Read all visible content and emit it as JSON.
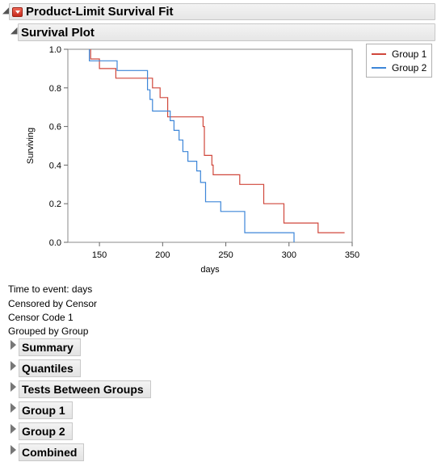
{
  "report": {
    "title": "Product-Limit Survival Fit",
    "plot_title": "Survival Plot"
  },
  "chart_data": {
    "type": "line",
    "step": true,
    "xlabel": "days",
    "ylabel": "Surviving",
    "xlim": [
      125,
      350
    ],
    "ylim": [
      0,
      1.0
    ],
    "xticks": [
      150,
      200,
      250,
      300,
      350
    ],
    "yticks": [
      0.0,
      0.2,
      0.4,
      0.6,
      0.8,
      1.0
    ],
    "grid": false,
    "legend_position": "top-right",
    "series": [
      {
        "name": "Group 1",
        "color": "#d0473b",
        "x": [
          143,
          143,
          150,
          150,
          163,
          163,
          192,
          192,
          198,
          198,
          204,
          204,
          232,
          232,
          233,
          233,
          239,
          239,
          240,
          240,
          261,
          261,
          280,
          280,
          296,
          296,
          323,
          323,
          344
        ],
        "y": [
          1.0,
          0.95,
          0.95,
          0.9,
          0.9,
          0.85,
          0.85,
          0.8,
          0.8,
          0.75,
          0.75,
          0.65,
          0.65,
          0.6,
          0.6,
          0.45,
          0.45,
          0.4,
          0.4,
          0.35,
          0.35,
          0.3,
          0.3,
          0.2,
          0.2,
          0.1,
          0.1,
          0.05,
          0.05
        ]
      },
      {
        "name": "Group 2",
        "color": "#3d86d8",
        "x": [
          142,
          142,
          164,
          164,
          188,
          188,
          190,
          190,
          192,
          192,
          206,
          206,
          209,
          209,
          213,
          213,
          216,
          216,
          220,
          220,
          227,
          227,
          230,
          230,
          234,
          234,
          246,
          246,
          265,
          265,
          304,
          304
        ],
        "y": [
          1.0,
          0.94,
          0.94,
          0.89,
          0.89,
          0.79,
          0.79,
          0.74,
          0.74,
          0.68,
          0.68,
          0.63,
          0.63,
          0.58,
          0.58,
          0.53,
          0.53,
          0.47,
          0.47,
          0.42,
          0.42,
          0.37,
          0.37,
          0.31,
          0.31,
          0.21,
          0.21,
          0.16,
          0.16,
          0.05,
          0.05,
          0.0
        ]
      }
    ]
  },
  "info_lines": [
    "Time to event: days",
    "Censored by Censor",
    "Censor Code 1",
    "Grouped by Group"
  ],
  "sections": [
    {
      "label": "Summary"
    },
    {
      "label": "Quantiles"
    },
    {
      "label": "Tests Between Groups"
    },
    {
      "label": "Group 1"
    },
    {
      "label": "Group 2"
    },
    {
      "label": "Combined"
    }
  ],
  "colors": {
    "group1": "#d0473b",
    "group2": "#3d86d8",
    "menu_red": "#d7402f"
  },
  "icons": {
    "outline_open": "triangle-open-icon",
    "outline_closed": "triangle-closed-icon",
    "red_menu": "red-triangle-menu-icon"
  }
}
